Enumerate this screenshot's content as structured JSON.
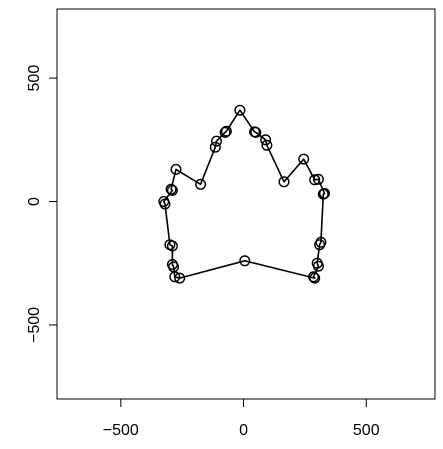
{
  "chart_data": {
    "type": "line",
    "title": "",
    "xlabel": "",
    "ylabel": "",
    "xlim": [
      -760,
      780
    ],
    "ylim": [
      -800,
      780
    ],
    "x_ticks": [
      -500,
      0,
      500
    ],
    "x_tick_labels": [
      "−500",
      "0",
      "500"
    ],
    "y_ticks": [
      -500,
      0,
      500
    ],
    "y_tick_labels": [
      "−500",
      "0",
      "500"
    ],
    "grid": false,
    "markers": "open-circle",
    "series": [
      {
        "closed": true,
        "points": [
          [
            -15,
            370
          ],
          [
            45,
            282
          ],
          [
            50,
            280
          ],
          [
            90,
            250
          ],
          [
            95,
            228
          ],
          [
            165,
            80
          ],
          [
            245,
            172
          ],
          [
            290,
            88
          ],
          [
            305,
            90
          ],
          [
            330,
            33
          ],
          [
            325,
            30
          ],
          [
            315,
            -165
          ],
          [
            310,
            -175
          ],
          [
            300,
            -250
          ],
          [
            305,
            -262
          ],
          [
            285,
            -305
          ],
          [
            290,
            -310
          ],
          [
            5,
            -240
          ],
          [
            -260,
            -310
          ],
          [
            -280,
            -305
          ],
          [
            -285,
            -265
          ],
          [
            -290,
            -255
          ],
          [
            -290,
            -180
          ],
          [
            -300,
            -175
          ],
          [
            -320,
            -10
          ],
          [
            -325,
            0
          ],
          [
            -290,
            45
          ],
          [
            -295,
            50
          ],
          [
            -275,
            130
          ],
          [
            -175,
            70
          ],
          [
            -115,
            220
          ],
          [
            -110,
            245
          ],
          [
            -75,
            280
          ],
          [
            -70,
            285
          ]
        ]
      }
    ]
  }
}
